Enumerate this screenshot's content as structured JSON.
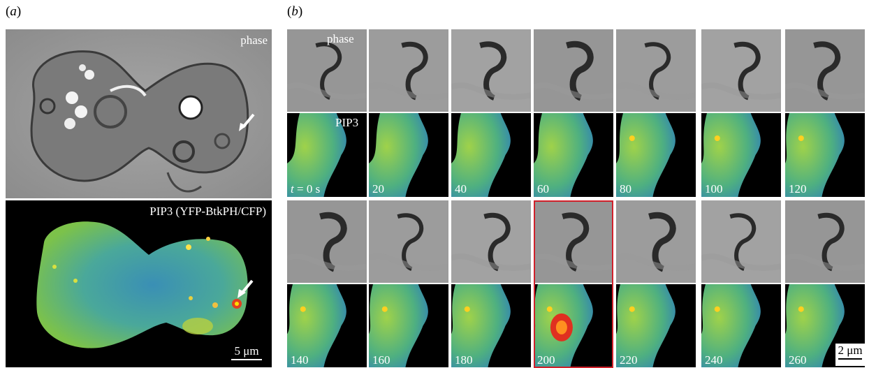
{
  "panel_a": {
    "label": "a",
    "phase_label": "phase",
    "pip3_label": "PIP3 (YFP-BtkPH/CFP)",
    "scale_bar": "5 μm"
  },
  "panel_b": {
    "label": "b",
    "phase_label": "phase",
    "pip3_label": "PIP3",
    "time_prefix": "t = ",
    "time_first": "0 s",
    "times_row1": [
      "20",
      "40",
      "60",
      "80",
      "100",
      "120"
    ],
    "times_row2": [
      "140",
      "160",
      "180",
      "200",
      "220",
      "240",
      "260"
    ],
    "highlighted_frame": "200",
    "highlight_color": "#d0202a",
    "scale_bar": "2 μm"
  }
}
